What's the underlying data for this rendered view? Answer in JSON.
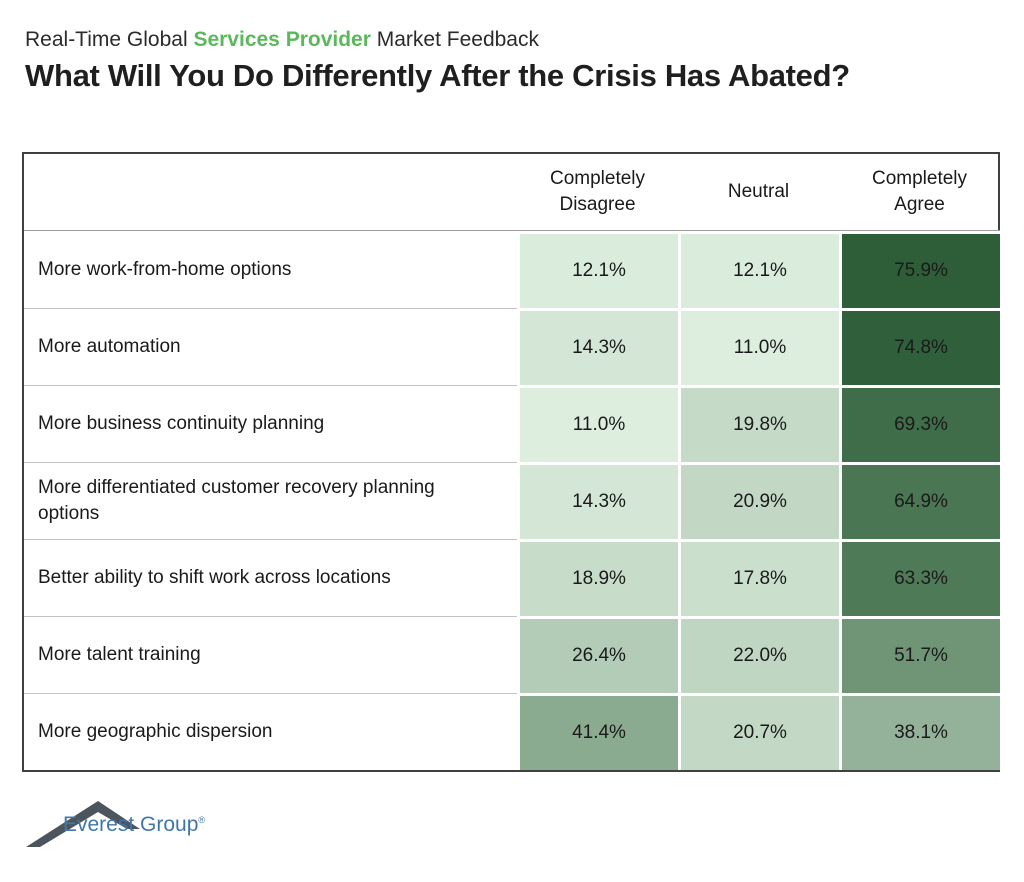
{
  "page": {
    "subtitle_prefix": "Real-Time Global ",
    "subtitle_highlight": "Services Provider",
    "subtitle_suffix": " Market Feedback",
    "title": "What Will You Do Differently After the Crisis Has Abated?"
  },
  "chart_data": {
    "type": "heatmap",
    "title": "What Will You Do Differently After the Crisis Has Abated?",
    "columns": [
      "Completely Disagree",
      "Neutral",
      "Completely Agree"
    ],
    "rows": [
      {
        "label": "More work-from-home options",
        "values": [
          12.1,
          12.1,
          75.9
        ]
      },
      {
        "label": "More automation",
        "values": [
          14.3,
          11.0,
          74.8
        ]
      },
      {
        "label": "More business continuity planning",
        "values": [
          11.0,
          19.8,
          69.3
        ]
      },
      {
        "label": "More differentiated customer recovery planning options",
        "values": [
          14.3,
          20.9,
          64.9
        ]
      },
      {
        "label": "Better ability to shift work across locations",
        "values": [
          18.9,
          17.8,
          63.3
        ]
      },
      {
        "label": "More talent training",
        "values": [
          26.4,
          22.0,
          51.7
        ]
      },
      {
        "label": "More geographic dispersion",
        "values": [
          41.4,
          20.7,
          38.1
        ]
      }
    ],
    "value_format": "percent_one_decimal",
    "color_scale": {
      "min_value": 11.0,
      "max_value": 75.9,
      "min_color": "#DDEEDE",
      "max_color": "#2D5E38"
    },
    "cell_text_color": "#1A1A1A",
    "legend_position": "none",
    "grid": false
  },
  "footer": {
    "logo_text": "Everest Group",
    "registered_mark": "®"
  },
  "colors": {
    "accent_green": "#5CB85C",
    "title_text": "#1F1F1F",
    "table_border": "#404040",
    "header_separator": "#9E9E9E",
    "row_separator": "#C3C3C3",
    "logo_blue": "#4077A8",
    "logo_gray": "#4C555D",
    "background": "#FFFFFF"
  }
}
